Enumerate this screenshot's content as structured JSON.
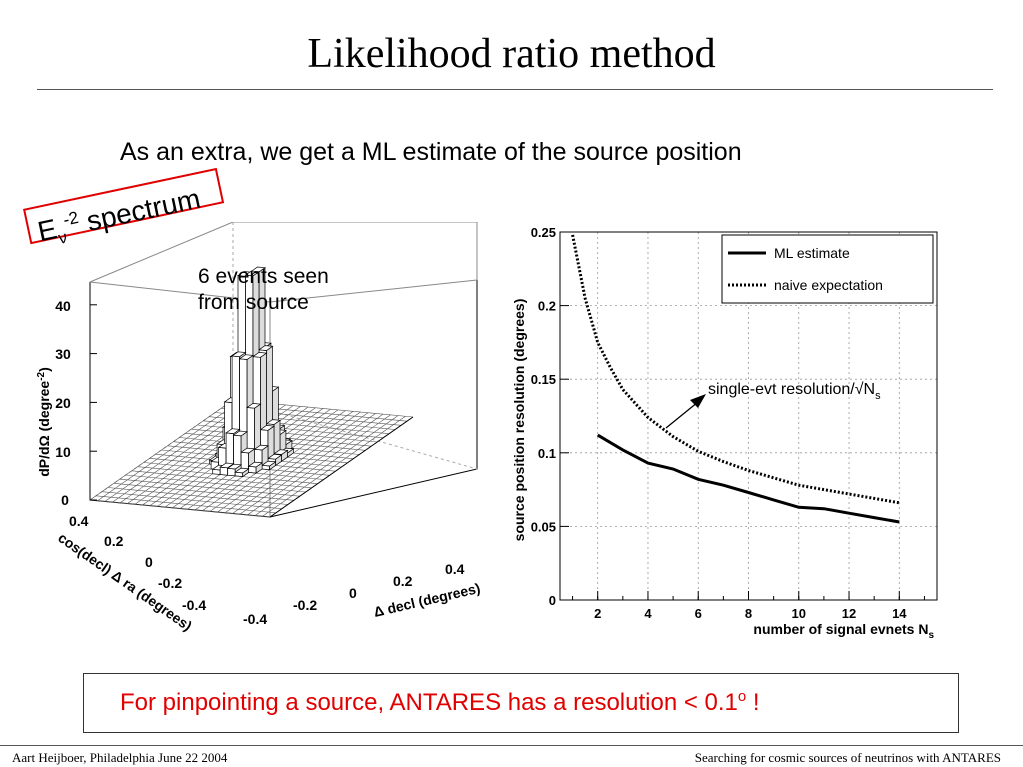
{
  "slide": {
    "title": "Likelihood ratio method",
    "subtitle": "As an extra, we get a ML estimate of the source position",
    "spectrum_label": {
      "base": "E",
      "sub": "ν",
      "sup": "-2",
      "rest": " spectrum"
    },
    "events_note": [
      "6 events seen",
      "from source"
    ],
    "conclusion": {
      "text": "For pinpointing a source, ANTARES has a resolution < 0.1",
      "sup": "o",
      "tail": "  !"
    },
    "footer_left": "Aart Heijboer, Philadelphia June 22 2004",
    "footer_right": "Searching for cosmic sources of neutrinos with ANTARES",
    "colors": {
      "accent": "#e00000"
    }
  },
  "plot3d": {
    "zlabel": "dP/dΩ (degree",
    "zlabel_sup": "-2",
    "zticks": [
      "0",
      "10",
      "20",
      "30",
      "40"
    ],
    "ylabel": "cos(decl) Δ ra (degrees)",
    "yticks": [
      "0.4",
      "0.2",
      "0",
      "-0.2",
      "-0.4"
    ],
    "xlabel": "Δ decl (degrees)",
    "xticks": [
      "-0.4",
      "-0.2",
      "0",
      "0.2",
      "0.4"
    ]
  },
  "chart_data": {
    "type": "line",
    "xlabel": "number of signal evnets N",
    "xlabel_sub": "s",
    "ylabel": "source position resolution (degrees)",
    "xlim": [
      0.5,
      15.5
    ],
    "ylim": [
      0,
      0.25
    ],
    "xticks": [
      "2",
      "4",
      "6",
      "8",
      "10",
      "12",
      "14"
    ],
    "yticks": [
      "0",
      "0.05",
      "0.1",
      "0.15",
      "0.2",
      "0.25"
    ],
    "grid": true,
    "legend_position": "top-right",
    "series": [
      {
        "name": "ML estimate",
        "style": "solid",
        "x": [
          2,
          3,
          4,
          5,
          6,
          7,
          8,
          9,
          10,
          11,
          12,
          13,
          14
        ],
        "y": [
          0.112,
          0.102,
          0.093,
          0.089,
          0.082,
          0.078,
          0.073,
          0.068,
          0.063,
          0.062,
          0.059,
          0.056,
          0.053
        ]
      },
      {
        "name": "naive expectation",
        "style": "dotted",
        "x": [
          1,
          1.5,
          2,
          2.5,
          3,
          4,
          5,
          6,
          7,
          8,
          9,
          10,
          11,
          12,
          13,
          14
        ],
        "y": [
          0.248,
          0.205,
          0.175,
          0.158,
          0.143,
          0.124,
          0.111,
          0.101,
          0.094,
          0.088,
          0.083,
          0.078,
          0.075,
          0.072,
          0.069,
          0.066
        ]
      }
    ],
    "annotation": {
      "text": "single-evt resolution/√N",
      "sub": "s"
    }
  }
}
